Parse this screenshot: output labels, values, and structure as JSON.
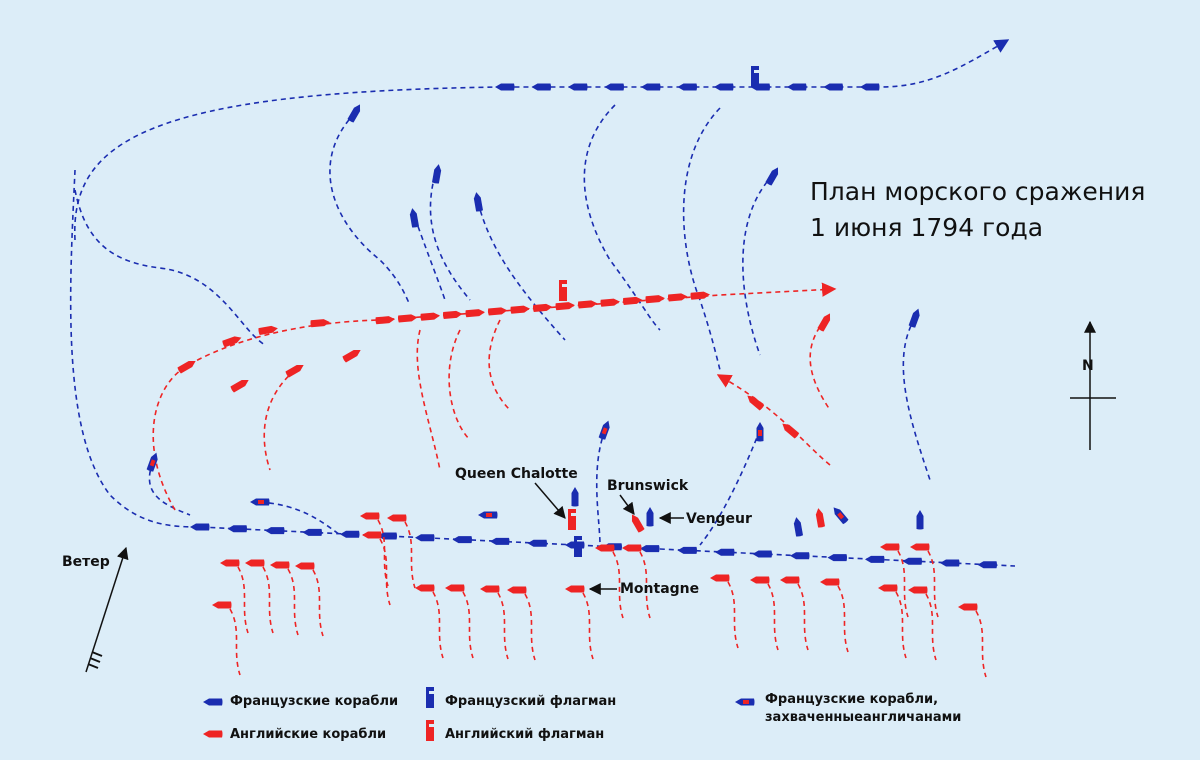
{
  "title": {
    "line1": "План морского сражения",
    "line2": "1 июня 1794 года"
  },
  "labels": {
    "queen": "Queen Chalotte",
    "brunswick": "Brunswick",
    "vengeur": "Vengeur",
    "montagne": "Montagne"
  },
  "compass": "N",
  "wind": "Ветер",
  "legend": {
    "french_ships": "Французские корабли",
    "french_flagship": "Французский флагман",
    "captured_line1": "Французские корабли,",
    "captured_line2": "захваченныеангличанами",
    "english_ships": "Английские корабли",
    "english_flagship": "Английский флагман"
  }
}
